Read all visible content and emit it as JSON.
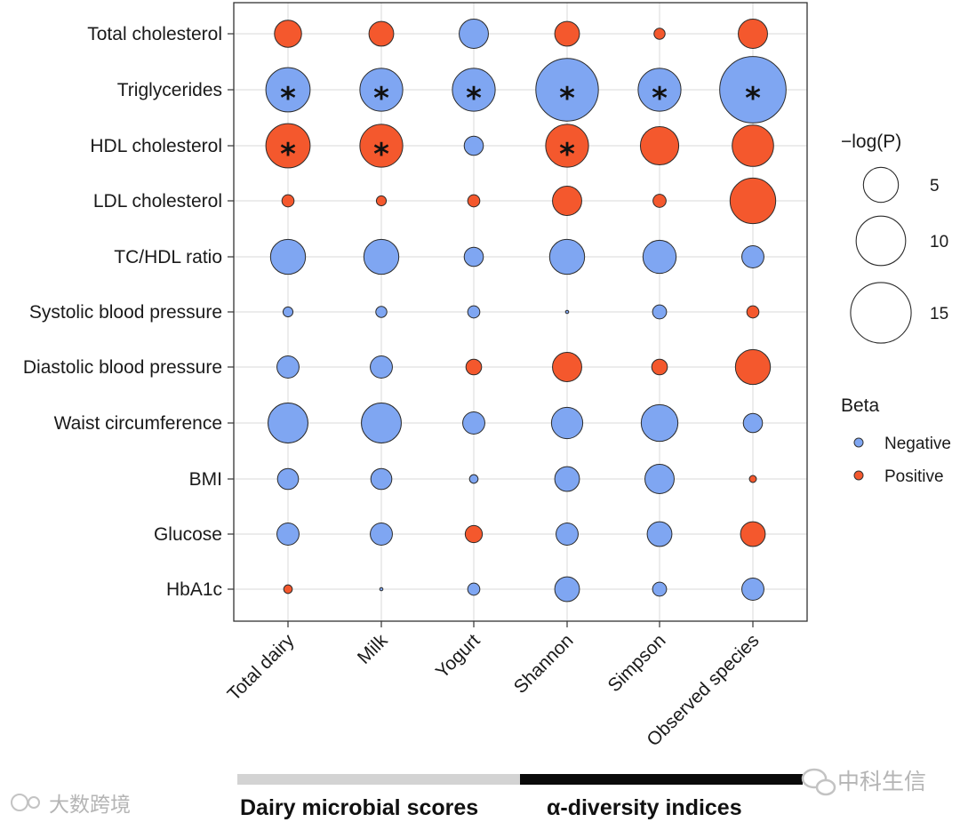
{
  "chart_data": {
    "type": "scatter",
    "rows": [
      "Total cholesterol",
      "Triglycerides",
      "HDL cholesterol",
      "LDL cholesterol",
      "TC/HDL ratio",
      "Systolic blood pressure",
      "Diastolic blood pressure",
      "Waist circumference",
      "BMI",
      "Glucose",
      "HbA1c"
    ],
    "columns": [
      "Total dairy",
      "Milk",
      "Yogurt",
      "Shannon",
      "Simpson",
      "Observed species"
    ],
    "logp": [
      [
        3.0,
        2.5,
        3.5,
        2.5,
        0.5,
        3.5
      ],
      [
        8.0,
        7.5,
        7.5,
        16.0,
        7.5,
        18.0
      ],
      [
        8.0,
        7.5,
        1.5,
        7.5,
        6.0,
        7.0
      ],
      [
        0.6,
        0.4,
        0.6,
        3.5,
        0.7,
        8.5
      ],
      [
        5.0,
        5.0,
        1.5,
        5.0,
        4.5,
        2.0
      ],
      [
        0.4,
        0.5,
        0.6,
        0.1,
        0.8,
        0.6
      ],
      [
        2.0,
        2.0,
        1.0,
        3.5,
        1.0,
        5.0
      ],
      [
        6.5,
        6.5,
        2.0,
        4.0,
        5.5,
        1.5
      ],
      [
        1.8,
        1.8,
        0.3,
        2.5,
        3.5,
        0.2
      ],
      [
        2.0,
        2.0,
        1.2,
        2.0,
        2.5,
        2.5
      ],
      [
        0.3,
        0.05,
        0.6,
        2.5,
        0.8,
        2.0
      ]
    ],
    "beta": [
      [
        "Positive",
        "Positive",
        "Negative",
        "Positive",
        "Positive",
        "Positive"
      ],
      [
        "Negative",
        "Negative",
        "Negative",
        "Negative",
        "Negative",
        "Negative"
      ],
      [
        "Positive",
        "Positive",
        "Negative",
        "Positive",
        "Positive",
        "Positive"
      ],
      [
        "Positive",
        "Positive",
        "Positive",
        "Positive",
        "Positive",
        "Positive"
      ],
      [
        "Negative",
        "Negative",
        "Negative",
        "Negative",
        "Negative",
        "Negative"
      ],
      [
        "Negative",
        "Negative",
        "Negative",
        "Negative",
        "Negative",
        "Positive"
      ],
      [
        "Negative",
        "Negative",
        "Positive",
        "Positive",
        "Positive",
        "Positive"
      ],
      [
        "Negative",
        "Negative",
        "Negative",
        "Negative",
        "Negative",
        "Negative"
      ],
      [
        "Negative",
        "Negative",
        "Negative",
        "Negative",
        "Negative",
        "Positive"
      ],
      [
        "Negative",
        "Negative",
        "Positive",
        "Negative",
        "Negative",
        "Positive"
      ],
      [
        "Positive",
        "Negative",
        "Negative",
        "Negative",
        "Negative",
        "Negative"
      ]
    ],
    "significant": [
      [
        1,
        0
      ],
      [
        1,
        1
      ],
      [
        1,
        2
      ],
      [
        1,
        3
      ],
      [
        1,
        4
      ],
      [
        1,
        5
      ],
      [
        2,
        0
      ],
      [
        2,
        1
      ],
      [
        2,
        3
      ]
    ],
    "significance_mark": "*",
    "size_legend": {
      "title": "−log(P)",
      "values": [
        5,
        10,
        15
      ],
      "labels": [
        "5",
        "10",
        "15"
      ]
    },
    "color_legend": {
      "title": "Beta",
      "entries": [
        {
          "label": "Negative",
          "color": "#7fa6f2"
        },
        {
          "label": "Positive",
          "color": "#f4582d"
        }
      ]
    },
    "groups": [
      {
        "label": "Dairy microbial scores",
        "color": "#d3d3d3"
      },
      {
        "label": "α-diversity indices",
        "color": "#0a0a0a"
      }
    ],
    "grid": true
  },
  "watermarks": {
    "left": "大数跨境",
    "right": "中科生信"
  }
}
